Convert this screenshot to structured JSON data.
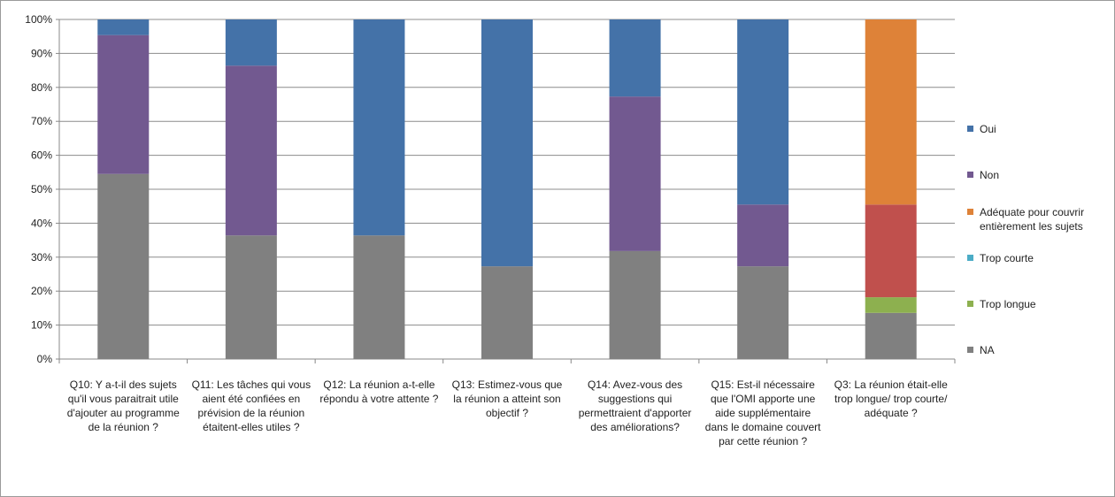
{
  "chart_data": {
    "type": "bar",
    "stacked": true,
    "percent": true,
    "ylim": [
      0,
      100
    ],
    "yticks": [
      "0%",
      "10%",
      "20%",
      "30%",
      "40%",
      "50%",
      "60%",
      "70%",
      "80%",
      "90%",
      "100%"
    ],
    "grid": true,
    "legend_position": "right",
    "categories": [
      "Q10: Y a-t-il des sujets qu'il vous paraitrait utile d'ajouter au programme de la réunion ?",
      "Q11: Les tâches qui vous aient été confiées en prévision de la réunion étaitent-elles utiles ?",
      "Q12: La réunion a-t-elle répondu à votre attente ?",
      "Q13: Estimez-vous que la réunion a atteint son objectif ?",
      "Q14: Avez-vous des suggestions qui permettraient d'apporter des améliorations?",
      "Q15: Est-il nécessaire que l'OMI apporte une aide supplémentaire dans le domaine couvert par cette réunion ?",
      "Q3: La réunion était-elle trop longue/ trop courte/ adéquate ?"
    ],
    "series": [
      {
        "name": "NA",
        "color": "#808080",
        "values": [
          54.5,
          36.4,
          36.4,
          27.3,
          31.8,
          27.3,
          13.6
        ]
      },
      {
        "name": "Trop longue",
        "color": "#8DB04F",
        "values": [
          0,
          0,
          0,
          0,
          0,
          0,
          4.6
        ]
      },
      {
        "name": "Trop courte",
        "color": "#4BACC6",
        "values": [
          0,
          0,
          0,
          0,
          0,
          0,
          0
        ]
      },
      {
        "name": "Adéquate pour couvrir entièrement les sujets",
        "color": "#C0504D",
        "values": [
          0,
          0,
          0,
          0,
          0,
          0,
          27.3
        ]
      },
      {
        "name": "Non",
        "color": "#725990",
        "values": [
          40.9,
          50.0,
          0,
          0,
          45.5,
          18.2,
          0
        ]
      },
      {
        "name": "Oui",
        "color": "#4472A8",
        "values": [
          4.6,
          13.6,
          63.6,
          72.7,
          22.7,
          54.5,
          0
        ]
      },
      {
        "name": "Adéquate pour couvrir entièrement les sujets",
        "color": "#DE8238",
        "values": [
          0,
          0,
          0,
          0,
          0,
          0,
          54.5
        ]
      }
    ],
    "legend": [
      {
        "label": "Oui",
        "color": "#4472A8"
      },
      {
        "label": "Non",
        "color": "#725990"
      },
      {
        "label": "Adéquate pour couvrir entièrement les sujets",
        "color": "#DE8238"
      },
      {
        "label": "Trop courte",
        "color": "#4BACC6"
      },
      {
        "label": "Trop longue",
        "color": "#8DB04F"
      },
      {
        "label": "NA",
        "color": "#808080"
      }
    ]
  }
}
